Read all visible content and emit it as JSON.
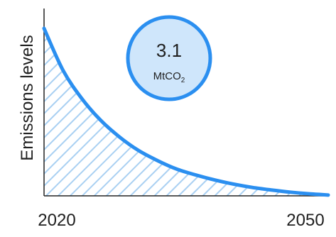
{
  "chart_data": {
    "type": "area",
    "ylabel": "Emissions levels",
    "x_ticks": [
      "2020",
      "2050"
    ],
    "series": [
      {
        "x": [
          2020,
          2022,
          2024,
          2026,
          2028,
          2030,
          2032,
          2034,
          2036,
          2038,
          2040,
          2042,
          2044,
          2046,
          2048,
          2050
        ],
        "y": [
          100,
          75,
          58,
          45,
          35,
          27,
          21,
          16,
          12.5,
          9.5,
          7,
          5,
          3.5,
          2.2,
          1.2,
          0.5
        ]
      }
    ],
    "xlim": [
      2020,
      2050
    ],
    "ylim": [
      0,
      100
    ],
    "grid": false,
    "annotation": {
      "value": "3.1",
      "unit_prefix": "MtCO",
      "unit_subscript": "2"
    },
    "colors": {
      "line": "#2b8ff0",
      "hatch": "#a9d0f2",
      "badge_fill": "#cfe6fb",
      "badge_stroke": "#2b8ff0",
      "axis": "#222222"
    }
  }
}
